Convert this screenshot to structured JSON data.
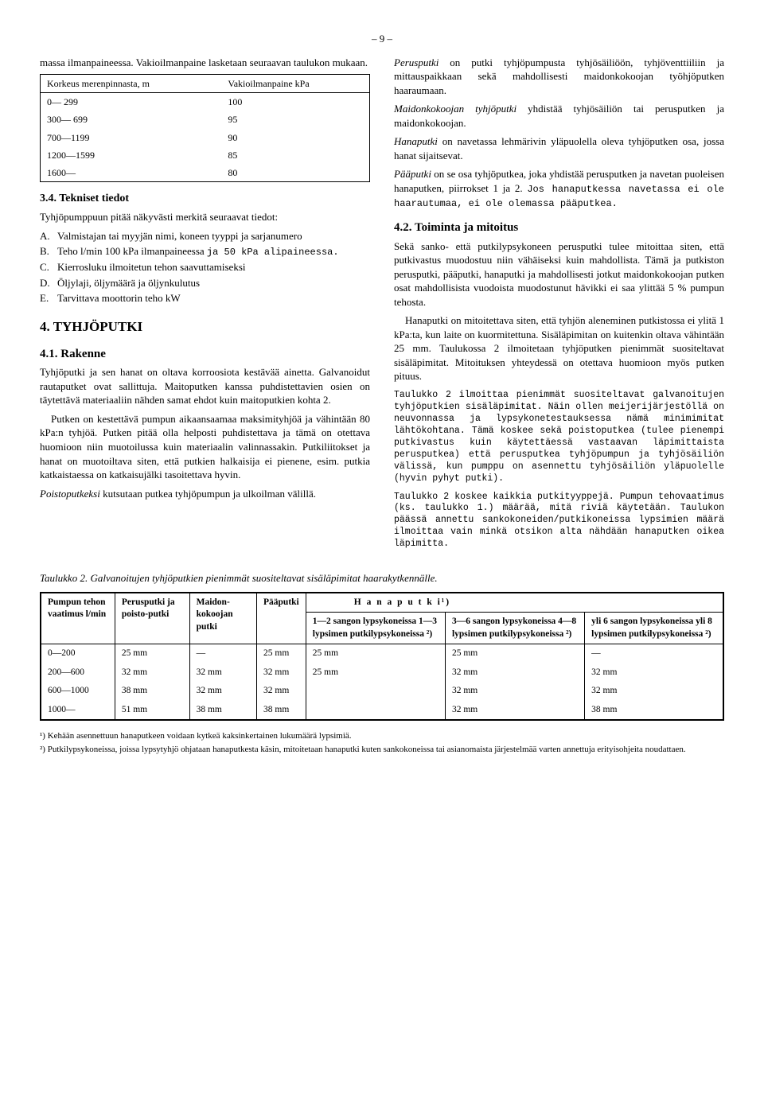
{
  "pageNumber": "– 9 –",
  "leftCol": {
    "intro": "massa ilmanpaineessa. Vakioilmanpaine lasketaan seuraavan taulukon mukaan.",
    "table1": {
      "headers": [
        "Korkeus merenpinnasta, m",
        "Vakioilmanpaine kPa"
      ],
      "rows": [
        [
          "0— 299",
          "100"
        ],
        [
          "300— 699",
          "95"
        ],
        [
          "700—1199",
          "90"
        ],
        [
          "1200—1599",
          "85"
        ],
        [
          "1600—",
          "80"
        ]
      ]
    },
    "sec34_title": "3.4. Tekniset tiedot",
    "sec34_intro": "Tyhjöpumppuun pitää näkyvästi merkitä seuraavat tiedot:",
    "list": [
      {
        "l": "A.",
        "t": "Valmistajan tai myyjän nimi, koneen tyyppi ja sarjanumero"
      },
      {
        "l": "B.",
        "t": "Teho l/min 100 kPa ilmanpaineessa ",
        "tt": "ja 50 kPa alipaineessa."
      },
      {
        "l": "C.",
        "t": "Kierrosluku ilmoitetun tehon saavuttamiseksi"
      },
      {
        "l": "D.",
        "t": "Öljylaji, öljymäärä ja öljynkulutus"
      },
      {
        "l": "E.",
        "t": "Tarvittava moottorin teho kW"
      }
    ],
    "sec4_title": "4. TYHJÖPUTKI",
    "sec41_title": "4.1. Rakenne",
    "sec41_p1": "Tyhjöputki ja sen hanat on oltava korroosiota kestävää ainetta. Galvanoidut rautaputket ovat sallittuja. Maitoputken kanssa puhdistettavien osien on täytettävä materiaaliin nähden samat ehdot kuin maitoputkien kohta 2.",
    "sec41_p2": "Putken on kestettävä pumpun aikaansaamaa maksimityhjöä ja vähintään 80 kPa:n tyhjöä. Putken pitää olla helposti puhdistettava ja tämä on otettava huomioon niin muotoilussa kuin materiaalin valinnassakin. Putkiliitokset ja hanat on muotoiltava siten, että putkien halkaisija ei pienene, esim. putkia katkaistaessa on katkaisujälki tasoitettava hyvin.",
    "sec41_p3a": "Poistoputkeksi",
    "sec41_p3b": " kutsutaan putkea tyhjöpumpun ja ulkoilman välillä."
  },
  "rightCol": {
    "p1a": "Perusputki",
    "p1b": " on putki tyhjöpumpusta tyhjösäiliöön, tyhjöventtiiliin ja mittauspaikkaan sekä mahdollisesti maidonkokoojan työhjöputken haaraumaan.",
    "p2a": "Maidonkokoojan tyhjöputki",
    "p2b": " yhdistää tyhjösäiliön tai perusputken ja maidonkokoojan.",
    "p3a": "Hanaputki",
    "p3b": " on navetassa lehmärivin yläpuolella oleva tyhjöputken osa, jossa hanat sijaitsevat.",
    "p4a": "Pääputki",
    "p4b": " on se osa tyhjöputkea, joka yhdistää perusputken ja navetan puoleisen hanaputken, piirrokset 1 ja 2. ",
    "p4tt": "Jos hanaputkessa navetassa ei ole haarautumaa, ei ole olemassa pääputkea.",
    "sec42_title": "4.2. Toiminta ja mitoitus",
    "sec42_p1": "Sekä sanko- että putkilypsykoneen perusputki tulee mitoittaa siten, että putkivastus muodostuu niin vähäiseksi kuin mahdollista. Tämä ja putkiston perusputki, pääputki, hanaputki ja mahdollisesti jotkut maidonkokoojan putken osat mahdollisista vuodoista muodostunut hävikki ei saa ylittää 5 % pumpun tehosta.",
    "sec42_p2": "Hanaputki on mitoitettava siten, että tyhjön aleneminen putkistossa ei ylitä 1 kPa:ta, kun laite on kuormitettuna. Sisäläpimitan on kuitenkin oltava vähintään 25 mm. Taulukossa 2 ilmoitetaan tyhjöputken pienimmät suositeltavat sisäläpimitat. Mitoituksen yhteydessä on otettava huomioon myös putken pituus.",
    "tt1": "Taulukko 2 ilmoittaa pienimmät suositeltavat galvanoitujen tyhjöputkien sisäläpimitat. Näin ollen meijerijärjestöllä on neuvonnassa ja lypsykonetestauksessa nämä minimimitat lähtökohtana. Tämä koskee sekä poistoputkea (tulee pienempi putkivastus kuin käytettäessä vastaavan läpimittaista perusputkea) että perusputkea tyhjöpumpun ja tyhjösäiliön välissä, kun pumppu on asennettu tyhjösäiliön yläpuolelle (hyvin pyhyt putki).",
    "tt2": "Taulukko 2 koskee kaikkia putkityyppejä. Pumpun tehovaatimus (ks. taulukko 1.) määrää, mitä riviä käytetään. Taulukon päässä annettu sankokoneiden/putkikoneissa lypsimien määrä ilmoittaa vain minkä otsikon alta nähdään hanaputken oikea läpimitta."
  },
  "table2": {
    "caption": "Taulukko 2. Galvanoitujen tyhjöputkien pienimmät suositeltavat sisäläpimitat haarakytkennälle.",
    "groupHeader": "H a n a p u t k i¹)",
    "headers": {
      "c1": "Pumpun tehon vaatimus l/min",
      "c2": "Perusputki ja poisto-putki",
      "c3": "Maidon-kokoojan putki",
      "c4": "Pääputki",
      "c5": "1—2 sangon lypsykoneissa 1—3 lypsimen putkilypsykoneissa ²)",
      "c6": "3—6 sangon lypsykoneissa 4—8 lypsimen putkilypsykoneissa ²)",
      "c7": "yli 6 sangon lypsykoneissa yli 8 lypsimen putkilypsykoneissa ²)"
    },
    "rows": [
      [
        "0—200",
        "25 mm",
        "—",
        "25 mm",
        "25 mm",
        "25 mm",
        "—"
      ],
      [
        "200—600",
        "32 mm",
        "32 mm",
        "32 mm",
        "25 mm",
        "32 mm",
        "32 mm"
      ],
      [
        "600—1000",
        "38 mm",
        "32 mm",
        "32 mm",
        "",
        "32 mm",
        "32 mm"
      ],
      [
        "1000—",
        "51 mm",
        "38 mm",
        "38 mm",
        "",
        "32 mm",
        "38 mm"
      ]
    ]
  },
  "footnotes": {
    "f1": "¹) Kehään asennettuun hanaputkeen voidaan kytkeä kaksinkertainen lukumäärä lypsimiä.",
    "f2": "²) Putkilypsykoneissa, joissa lypsytyhjö ohjataan hanaputkesta käsin, mitoitetaan hanaputki kuten sankokoneissa tai asianomaista järjestelmää varten annettuja erityisohjeita noudattaen."
  }
}
